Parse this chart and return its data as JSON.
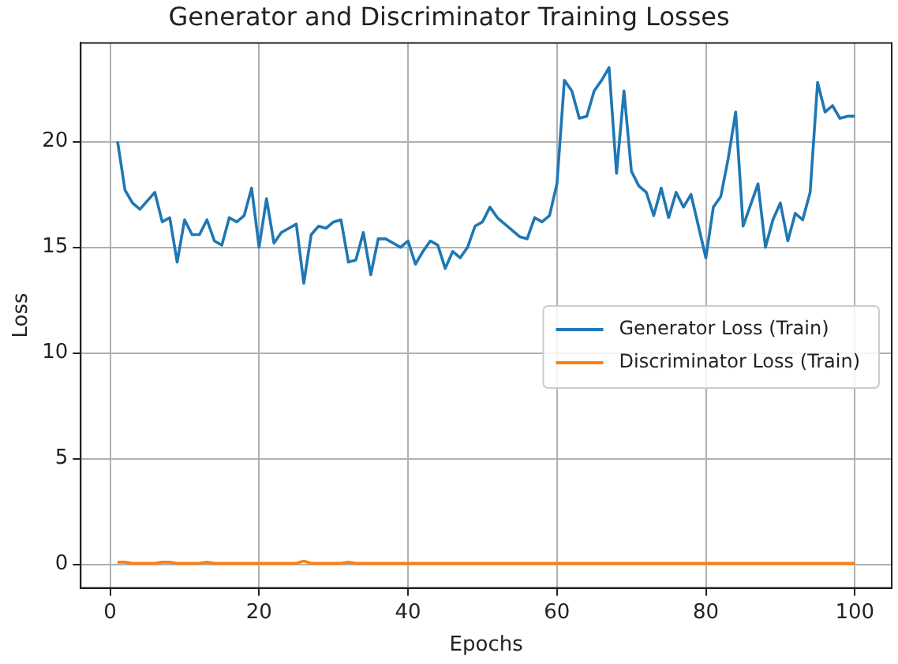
{
  "chart_data": {
    "type": "line",
    "title": "Generator and Discriminator Training Losses",
    "xlabel": "Epochs",
    "ylabel": "Loss",
    "x": [
      1,
      2,
      3,
      4,
      5,
      6,
      7,
      8,
      9,
      10,
      11,
      12,
      13,
      14,
      15,
      16,
      17,
      18,
      19,
      20,
      21,
      22,
      23,
      24,
      25,
      26,
      27,
      28,
      29,
      30,
      31,
      32,
      33,
      34,
      35,
      36,
      37,
      38,
      39,
      40,
      41,
      42,
      43,
      44,
      45,
      46,
      47,
      48,
      49,
      50,
      51,
      52,
      53,
      54,
      55,
      56,
      57,
      58,
      59,
      60,
      61,
      62,
      63,
      64,
      65,
      66,
      67,
      68,
      69,
      70,
      71,
      72,
      73,
      74,
      75,
      76,
      77,
      78,
      79,
      80,
      81,
      82,
      83,
      84,
      85,
      86,
      87,
      88,
      89,
      90,
      91,
      92,
      93,
      94,
      95,
      96,
      97,
      98,
      99,
      100
    ],
    "series": [
      {
        "name": "Generator Loss (Train)",
        "color": "#1f77b4",
        "values": [
          20,
          17.7,
          17.1,
          16.8,
          17.2,
          17.6,
          16.2,
          16.4,
          14.3,
          16.3,
          15.6,
          15.6,
          16.3,
          15.3,
          15.1,
          16.4,
          16.2,
          16.5,
          17.8,
          15.0,
          17.3,
          15.2,
          15.7,
          15.9,
          16.1,
          13.3,
          15.6,
          16.0,
          15.9,
          16.2,
          16.3,
          14.3,
          14.4,
          15.7,
          13.7,
          15.4,
          15.4,
          15.2,
          15.0,
          15.3,
          14.2,
          14.8,
          15.3,
          15.1,
          14.0,
          14.8,
          14.5,
          15.0,
          16.0,
          16.2,
          16.9,
          16.4,
          16.1,
          15.8,
          15.5,
          15.4,
          16.4,
          16.2,
          16.5,
          18.0,
          22.9,
          22.4,
          21.1,
          21.2,
          22.4,
          22.9,
          23.5,
          18.5,
          22.4,
          18.6,
          17.9,
          17.6,
          16.5,
          17.8,
          16.4,
          17.6,
          16.9,
          17.5,
          16.0,
          14.5,
          16.9,
          17.4,
          19.2,
          21.4,
          16.0,
          17.0,
          18.0,
          15.0,
          16.3,
          17.1,
          15.3,
          16.6,
          16.3,
          17.6,
          22.8,
          21.4,
          21.7,
          21.1,
          21.2,
          21.2
        ]
      },
      {
        "name": "Discriminator Loss (Train)",
        "color": "#ff7f0e",
        "values": [
          0.1,
          0.1,
          0.05,
          0.05,
          0.05,
          0.05,
          0.1,
          0.1,
          0.05,
          0.05,
          0.05,
          0.05,
          0.1,
          0.05,
          0.05,
          0.05,
          0.05,
          0.05,
          0.05,
          0.05,
          0.05,
          0.05,
          0.05,
          0.05,
          0.05,
          0.15,
          0.05,
          0.05,
          0.05,
          0.05,
          0.05,
          0.1,
          0.05,
          0.05,
          0.05,
          0.05,
          0.05,
          0.05,
          0.05,
          0.05,
          0.05,
          0.05,
          0.05,
          0.05,
          0.05,
          0.05,
          0.05,
          0.05,
          0.05,
          0.05,
          0.05,
          0.05,
          0.05,
          0.05,
          0.05,
          0.05,
          0.05,
          0.05,
          0.05,
          0.05,
          0.05,
          0.05,
          0.05,
          0.05,
          0.05,
          0.05,
          0.05,
          0.05,
          0.05,
          0.05,
          0.05,
          0.05,
          0.05,
          0.05,
          0.05,
          0.05,
          0.05,
          0.05,
          0.05,
          0.05,
          0.05,
          0.05,
          0.05,
          0.05,
          0.05,
          0.05,
          0.05,
          0.05,
          0.05,
          0.05,
          0.05,
          0.05,
          0.05,
          0.05,
          0.05,
          0.05,
          0.05,
          0.05,
          0.05,
          0.05
        ]
      }
    ],
    "xlim": [
      -3.95,
      104.95
    ],
    "xticks": [
      0,
      20,
      40,
      60,
      80,
      100
    ],
    "ylim": [
      -1.12,
      24.67
    ],
    "yticks": [
      0,
      5,
      10,
      15,
      20
    ],
    "grid": true,
    "legend": "right",
    "marker": "none",
    "line_style": "solid"
  }
}
